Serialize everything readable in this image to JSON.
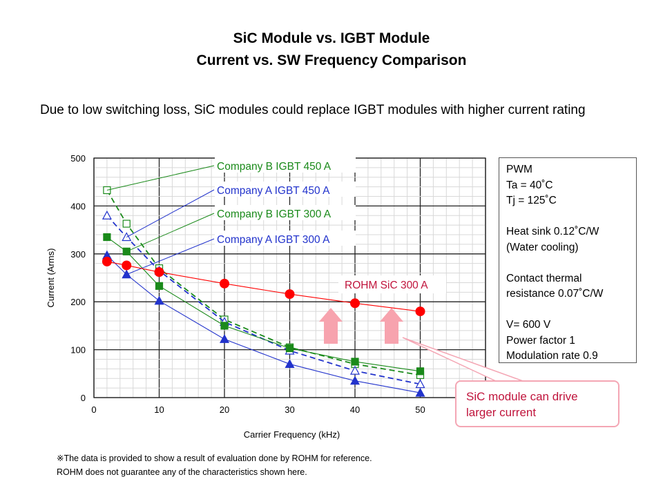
{
  "title_line1": "SiC Module vs. IGBT Module",
  "title_line2": "Current vs. SW Frequency Comparison",
  "subtitle": "Due to low switching loss, SiC modules could replace IGBT modules with higher current rating",
  "conditions": [
    "PWM",
    "Ta = 40˚C",
    "Tj = 125˚C",
    "",
    "Heat sink 0.12˚C/W",
    "(Water cooling)",
    "",
    "Contact thermal",
    "resistance 0.07˚C/W",
    "",
    "V= 600 V",
    "Power factor 1",
    "Modulation rate 0.9"
  ],
  "callout": "SiC module  can drive larger current",
  "note_line1": "※The data is provided to show a result of evaluation done by ROHM for reference.",
  "note_line2": "ROHM does not guarantee any of the characteristics shown here.",
  "chart_data": {
    "type": "line",
    "xlabel": "Carrier Frequency (kHz)",
    "ylabel": "Current (Arms)",
    "xlim": [
      0,
      60
    ],
    "ylim": [
      0,
      500
    ],
    "xticks": [
      0,
      10,
      20,
      30,
      40,
      50
    ],
    "yticks": [
      0,
      100,
      200,
      300,
      400,
      500
    ],
    "grid": true,
    "x": [
      2,
      5,
      10,
      20,
      30,
      40,
      50
    ],
    "series": [
      {
        "name": "Company B IGBT 450 A",
        "color": "#1a8a1a",
        "marker": "open-square",
        "dash": true,
        "values": [
          433,
          363,
          270,
          163,
          105,
          70,
          47
        ]
      },
      {
        "name": "Company A IGBT 450 A",
        "color": "#2233cc",
        "marker": "open-triangle",
        "dash": true,
        "values": [
          380,
          335,
          265,
          158,
          98,
          56,
          28
        ]
      },
      {
        "name": "Company B IGBT 300 A",
        "color": "#1a8a1a",
        "marker": "square",
        "dash": false,
        "values": [
          335,
          305,
          233,
          150,
          103,
          75,
          55
        ]
      },
      {
        "name": "Company A IGBT 300 A",
        "color": "#2233cc",
        "marker": "triangle",
        "dash": false,
        "values": [
          297,
          257,
          202,
          122,
          70,
          35,
          10
        ]
      },
      {
        "name": "ROHM SiC 300 A",
        "color": "#ff0000",
        "marker": "circle",
        "dash": false,
        "values": [
          284,
          276,
          262,
          238,
          216,
          197,
          180
        ]
      }
    ]
  }
}
